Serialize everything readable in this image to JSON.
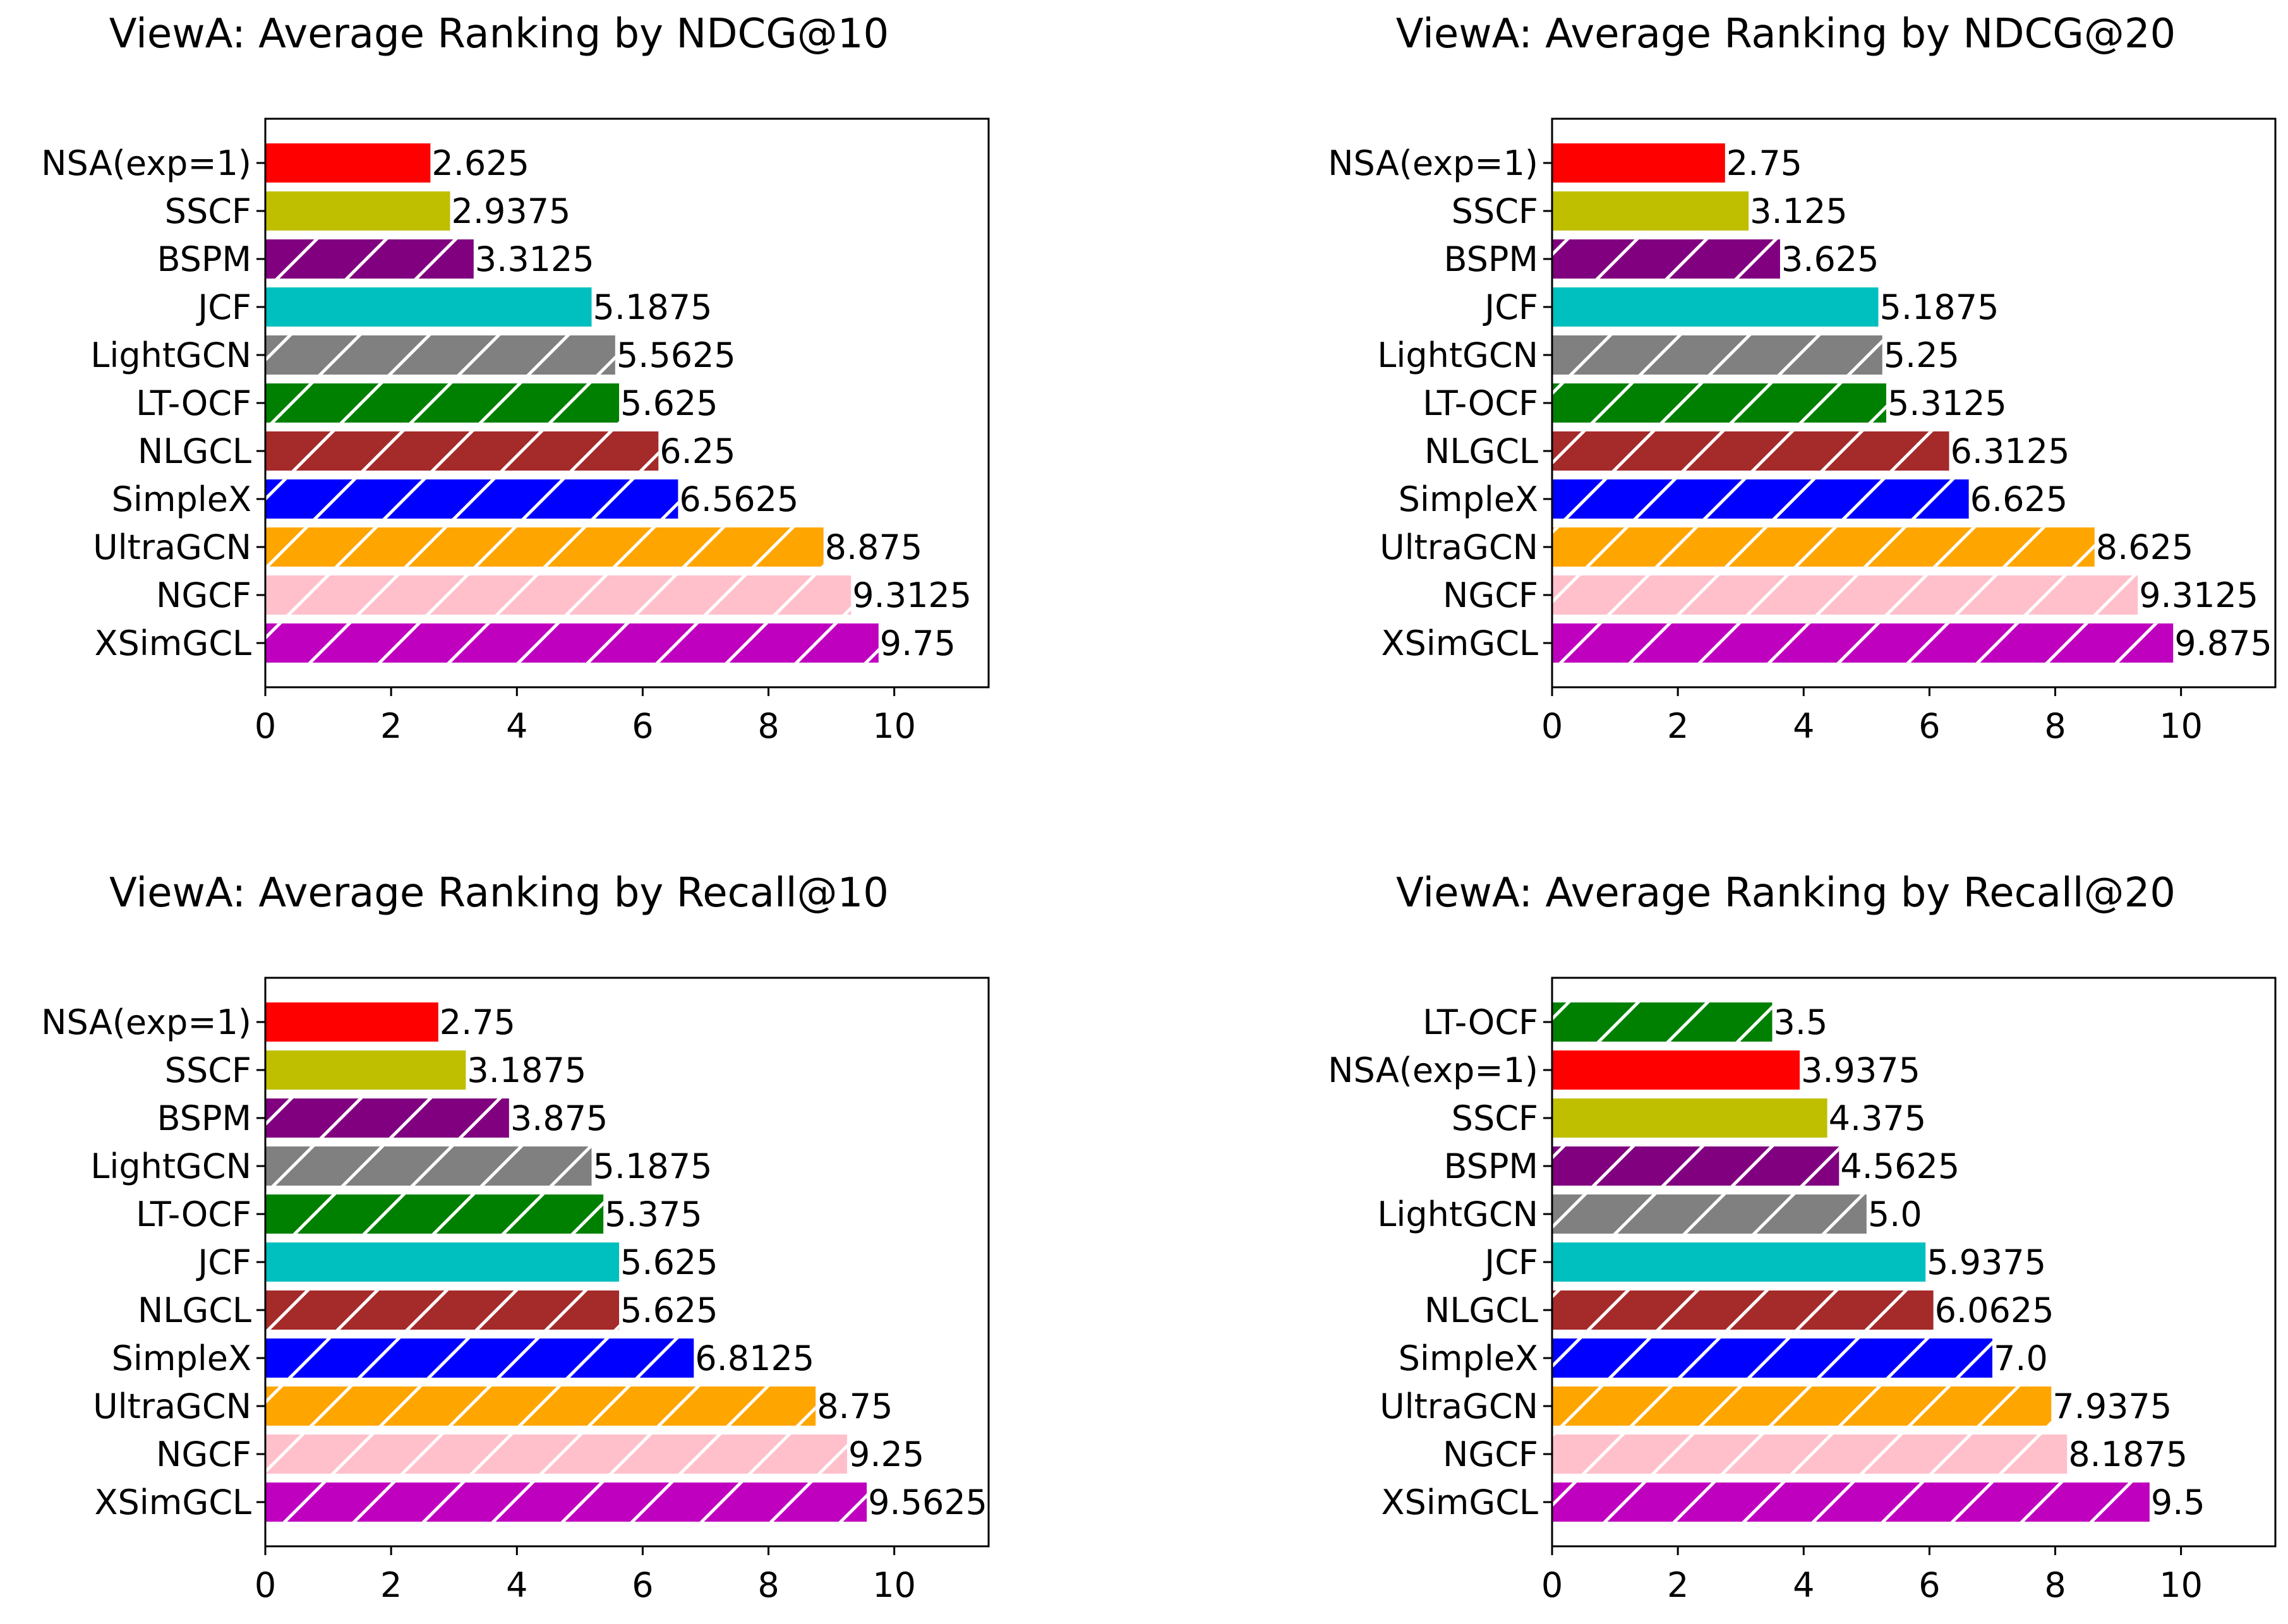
{
  "hatch_color": "#ffffff",
  "chart_data": [
    {
      "type": "bar",
      "orientation": "horizontal",
      "title": "ViewA: Average Ranking by NDCG@10",
      "xlim": [
        0,
        11.5
      ],
      "xticks": [
        0,
        2,
        4,
        6,
        8,
        10
      ],
      "grid": false,
      "bars": [
        {
          "name": "NSA(exp=1)",
          "value": 2.625,
          "label": "2.625",
          "color": "#ff0000",
          "hatch": false
        },
        {
          "name": "SSCF",
          "value": 2.9375,
          "label": "2.9375",
          "color": "#bfbf00",
          "hatch": false
        },
        {
          "name": "BSPM",
          "value": 3.3125,
          "label": "3.3125",
          "color": "#800080",
          "hatch": true
        },
        {
          "name": "JCF",
          "value": 5.1875,
          "label": "5.1875",
          "color": "#00bfbf",
          "hatch": false
        },
        {
          "name": "LightGCN",
          "value": 5.5625,
          "label": "5.5625",
          "color": "#808080",
          "hatch": true
        },
        {
          "name": "LT-OCF",
          "value": 5.625,
          "label": "5.625",
          "color": "#008000",
          "hatch": true
        },
        {
          "name": "NLGCL",
          "value": 6.25,
          "label": "6.25",
          "color": "#a52a2a",
          "hatch": true
        },
        {
          "name": "SimpleX",
          "value": 6.5625,
          "label": "6.5625",
          "color": "#0000ff",
          "hatch": true
        },
        {
          "name": "UltraGCN",
          "value": 8.875,
          "label": "8.875",
          "color": "#ffa500",
          "hatch": true
        },
        {
          "name": "NGCF",
          "value": 9.3125,
          "label": "9.3125",
          "color": "#ffc0cb",
          "hatch": true
        },
        {
          "name": "XSimGCL",
          "value": 9.75,
          "label": "9.75",
          "color": "#bf00bf",
          "hatch": true
        }
      ]
    },
    {
      "type": "bar",
      "orientation": "horizontal",
      "title": "ViewA: Average Ranking by NDCG@20",
      "xlim": [
        0,
        11.5
      ],
      "xticks": [
        0,
        2,
        4,
        6,
        8,
        10
      ],
      "grid": false,
      "bars": [
        {
          "name": "NSA(exp=1)",
          "value": 2.75,
          "label": "2.75",
          "color": "#ff0000",
          "hatch": false
        },
        {
          "name": "SSCF",
          "value": 3.125,
          "label": "3.125",
          "color": "#bfbf00",
          "hatch": false
        },
        {
          "name": "BSPM",
          "value": 3.625,
          "label": "3.625",
          "color": "#800080",
          "hatch": true
        },
        {
          "name": "JCF",
          "value": 5.1875,
          "label": "5.1875",
          "color": "#00bfbf",
          "hatch": false
        },
        {
          "name": "LightGCN",
          "value": 5.25,
          "label": "5.25",
          "color": "#808080",
          "hatch": true
        },
        {
          "name": "LT-OCF",
          "value": 5.3125,
          "label": "5.3125",
          "color": "#008000",
          "hatch": true
        },
        {
          "name": "NLGCL",
          "value": 6.3125,
          "label": "6.3125",
          "color": "#a52a2a",
          "hatch": true
        },
        {
          "name": "SimpleX",
          "value": 6.625,
          "label": "6.625",
          "color": "#0000ff",
          "hatch": true
        },
        {
          "name": "UltraGCN",
          "value": 8.625,
          "label": "8.625",
          "color": "#ffa500",
          "hatch": true
        },
        {
          "name": "NGCF",
          "value": 9.3125,
          "label": "9.3125",
          "color": "#ffc0cb",
          "hatch": true
        },
        {
          "name": "XSimGCL",
          "value": 9.875,
          "label": "9.875",
          "color": "#bf00bf",
          "hatch": true
        }
      ]
    },
    {
      "type": "bar",
      "orientation": "horizontal",
      "title": "ViewA: Average Ranking by Recall@10",
      "xlim": [
        0,
        11.5
      ],
      "xticks": [
        0,
        2,
        4,
        6,
        8,
        10
      ],
      "grid": false,
      "bars": [
        {
          "name": "NSA(exp=1)",
          "value": 2.75,
          "label": "2.75",
          "color": "#ff0000",
          "hatch": false
        },
        {
          "name": "SSCF",
          "value": 3.1875,
          "label": "3.1875",
          "color": "#bfbf00",
          "hatch": false
        },
        {
          "name": "BSPM",
          "value": 3.875,
          "label": "3.875",
          "color": "#800080",
          "hatch": true
        },
        {
          "name": "LightGCN",
          "value": 5.1875,
          "label": "5.1875",
          "color": "#808080",
          "hatch": true
        },
        {
          "name": "LT-OCF",
          "value": 5.375,
          "label": "5.375",
          "color": "#008000",
          "hatch": true
        },
        {
          "name": "JCF",
          "value": 5.625,
          "label": "5.625",
          "color": "#00bfbf",
          "hatch": false
        },
        {
          "name": "NLGCL",
          "value": 5.625,
          "label": "5.625",
          "color": "#a52a2a",
          "hatch": true
        },
        {
          "name": "SimpleX",
          "value": 6.8125,
          "label": "6.8125",
          "color": "#0000ff",
          "hatch": true
        },
        {
          "name": "UltraGCN",
          "value": 8.75,
          "label": "8.75",
          "color": "#ffa500",
          "hatch": true
        },
        {
          "name": "NGCF",
          "value": 9.25,
          "label": "9.25",
          "color": "#ffc0cb",
          "hatch": true
        },
        {
          "name": "XSimGCL",
          "value": 9.5625,
          "label": "9.5625",
          "color": "#bf00bf",
          "hatch": true
        }
      ]
    },
    {
      "type": "bar",
      "orientation": "horizontal",
      "title": "ViewA: Average Ranking by Recall@20",
      "xlim": [
        0,
        11.5
      ],
      "xticks": [
        0,
        2,
        4,
        6,
        8,
        10
      ],
      "grid": false,
      "bars": [
        {
          "name": "LT-OCF",
          "value": 3.5,
          "label": "3.5",
          "color": "#008000",
          "hatch": true
        },
        {
          "name": "NSA(exp=1)",
          "value": 3.9375,
          "label": "3.9375",
          "color": "#ff0000",
          "hatch": false
        },
        {
          "name": "SSCF",
          "value": 4.375,
          "label": "4.375",
          "color": "#bfbf00",
          "hatch": false
        },
        {
          "name": "BSPM",
          "value": 4.5625,
          "label": "4.5625",
          "color": "#800080",
          "hatch": true
        },
        {
          "name": "LightGCN",
          "value": 5.0,
          "label": "5.0",
          "color": "#808080",
          "hatch": true
        },
        {
          "name": "JCF",
          "value": 5.9375,
          "label": "5.9375",
          "color": "#00bfbf",
          "hatch": false
        },
        {
          "name": "NLGCL",
          "value": 6.0625,
          "label": "6.0625",
          "color": "#a52a2a",
          "hatch": true
        },
        {
          "name": "SimpleX",
          "value": 7.0,
          "label": "7.0",
          "color": "#0000ff",
          "hatch": true
        },
        {
          "name": "UltraGCN",
          "value": 7.9375,
          "label": "7.9375",
          "color": "#ffa500",
          "hatch": true
        },
        {
          "name": "NGCF",
          "value": 8.1875,
          "label": "8.1875",
          "color": "#ffc0cb",
          "hatch": true
        },
        {
          "name": "XSimGCL",
          "value": 9.5,
          "label": "9.5",
          "color": "#bf00bf",
          "hatch": true
        }
      ]
    }
  ]
}
